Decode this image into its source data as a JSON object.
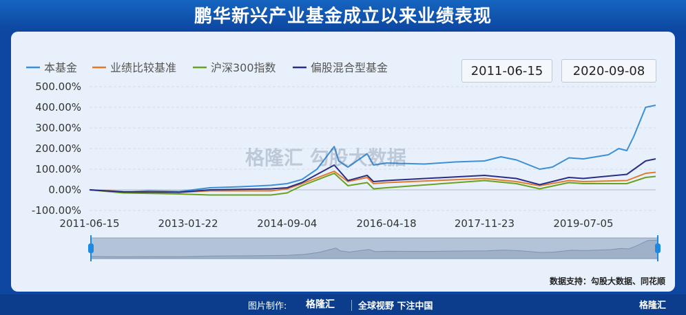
{
  "title": "鹏华新兴产业基金成立以来业绩表现",
  "date_range": {
    "start": "2011-06-15",
    "end": "2020-09-08"
  },
  "watermark": "格隆汇  勾股大数据",
  "source": "数据支持：勾股大数据、同花顺",
  "footer": {
    "made_by": "图片制作:",
    "brand": "格隆汇",
    "slogan": "全球视野 下注中国",
    "corner_brand": "格隆汇"
  },
  "colors": {
    "fund": "#3a8fd6",
    "benchmark": "#e07b2a",
    "hs300": "#6aa11f",
    "mixed": "#2a2d86"
  },
  "chart_data": {
    "type": "line",
    "ylabel": "",
    "xlabel": "",
    "ylim": [
      -100,
      500
    ],
    "yticks": [
      "500.00%",
      "400.00%",
      "300.00%",
      "200.00%",
      "100.00%",
      "0.00%",
      "-100.00%"
    ],
    "ytick_values": [
      500,
      400,
      300,
      200,
      100,
      0,
      -100
    ],
    "xticks": [
      "2011-06-15",
      "2013-01-22",
      "2014-09-04",
      "2016-04-18",
      "2017-11-23",
      "2019-07-05"
    ],
    "xtick_dates": [
      "2011-06-15",
      "2013-01-22",
      "2014-09-04",
      "2016-04-18",
      "2017-11-23",
      "2019-07-05"
    ],
    "grid": true,
    "legend": "top-left",
    "series": [
      {
        "name": "本基金",
        "x": [
          "2011-06-15",
          "2011-09-01",
          "2012-01-01",
          "2012-06-01",
          "2012-12-01",
          "2013-06-01",
          "2013-12-01",
          "2014-06-01",
          "2014-09-04",
          "2014-12-01",
          "2015-03-01",
          "2015-06-12",
          "2015-07-08",
          "2015-09-01",
          "2015-12-25",
          "2016-02-01",
          "2016-04-18",
          "2016-12-01",
          "2017-06-01",
          "2017-11-23",
          "2018-03-01",
          "2018-06-01",
          "2018-10-18",
          "2019-01-01",
          "2019-04-10",
          "2019-07-05",
          "2019-12-01",
          "2020-02-01",
          "2020-03-20",
          "2020-05-01",
          "2020-07-10",
          "2020-09-08"
        ],
        "values": [
          0,
          -5,
          -10,
          -5,
          -8,
          10,
          15,
          22,
          30,
          50,
          100,
          210,
          140,
          110,
          175,
          120,
          130,
          125,
          135,
          140,
          160,
          145,
          100,
          110,
          155,
          150,
          170,
          200,
          190,
          260,
          400,
          410
        ]
      },
      {
        "name": "业绩比较基准",
        "x": [
          "2011-06-15",
          "2012-01-01",
          "2012-12-01",
          "2013-06-01",
          "2014-06-01",
          "2014-09-04",
          "2014-12-01",
          "2015-06-12",
          "2015-09-01",
          "2015-12-25",
          "2016-02-01",
          "2016-04-18",
          "2017-11-23",
          "2018-06-01",
          "2018-10-18",
          "2019-04-10",
          "2019-07-05",
          "2020-03-20",
          "2020-07-10",
          "2020-09-08"
        ],
        "values": [
          0,
          -8,
          -12,
          -5,
          -5,
          5,
          30,
          90,
          40,
          60,
          30,
          35,
          55,
          40,
          20,
          45,
          40,
          45,
          80,
          85
        ]
      },
      {
        "name": "沪深300指数",
        "x": [
          "2011-06-15",
          "2012-01-01",
          "2012-12-01",
          "2013-06-01",
          "2014-06-01",
          "2014-09-04",
          "2014-12-01",
          "2015-06-12",
          "2015-09-01",
          "2015-12-25",
          "2016-02-01",
          "2016-04-18",
          "2017-11-23",
          "2018-06-01",
          "2018-10-18",
          "2019-04-10",
          "2019-07-05",
          "2020-03-20",
          "2020-07-10",
          "2020-09-08"
        ],
        "values": [
          0,
          -15,
          -20,
          -25,
          -25,
          -15,
          20,
          80,
          20,
          35,
          5,
          10,
          45,
          30,
          5,
          35,
          30,
          30,
          60,
          65
        ]
      },
      {
        "name": "偏股混合型基金",
        "x": [
          "2011-06-15",
          "2012-01-01",
          "2012-12-01",
          "2013-06-01",
          "2014-06-01",
          "2014-09-04",
          "2014-12-01",
          "2015-06-12",
          "2015-09-01",
          "2015-12-25",
          "2016-02-01",
          "2016-04-18",
          "2017-11-23",
          "2018-06-01",
          "2018-10-18",
          "2019-04-10",
          "2019-07-05",
          "2020-03-20",
          "2020-07-10",
          "2020-09-08"
        ],
        "values": [
          0,
          -10,
          -12,
          0,
          5,
          10,
          35,
          120,
          45,
          70,
          40,
          45,
          70,
          55,
          25,
          60,
          55,
          75,
          140,
          150
        ]
      }
    ]
  }
}
